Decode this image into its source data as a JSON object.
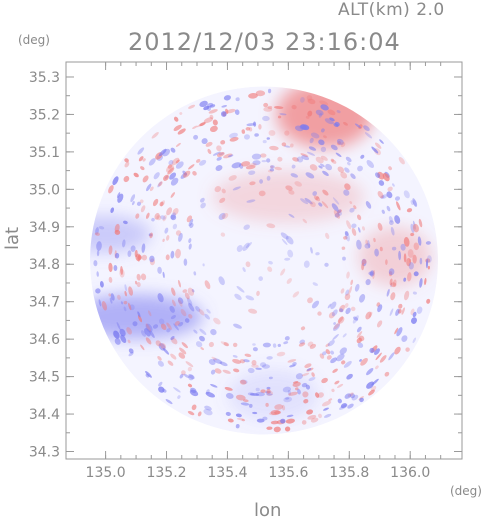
{
  "header": {
    "alt_label": "ALT(km) 2.0",
    "timestamp": "2012/12/03 23:16:04"
  },
  "axes": {
    "y_unit": "(deg)",
    "x_unit": "(deg)",
    "y_label": "lat",
    "x_label": "lon"
  },
  "colors": {
    "axis": "#9a9a9a",
    "positive": "#f07a7a",
    "negative": "#7a7af0",
    "neutral": "#f4f4ff"
  },
  "chart_data": {
    "type": "heatmap",
    "title": "2012/12/03 23:16:04",
    "xlabel": "lon",
    "ylabel": "lat",
    "xlim": [
      134.87,
      136.17
    ],
    "ylim": [
      34.28,
      35.34
    ],
    "x_ticks": [
      135.0,
      135.2,
      135.4,
      135.6,
      135.8,
      136.0
    ],
    "x_tick_labels": [
      "135.0",
      "135.2",
      "135.4",
      "135.6",
      "135.8",
      "136.0"
    ],
    "y_ticks": [
      34.3,
      34.4,
      34.5,
      34.6,
      34.7,
      34.8,
      34.9,
      35.0,
      35.1,
      35.2,
      35.3
    ],
    "y_tick_labels": [
      "34.3",
      "34.4",
      "34.5",
      "34.6",
      "34.7",
      "34.8",
      "34.9",
      "35.0",
      "35.1",
      "35.2",
      "35.3"
    ],
    "radar_center": [
      135.52,
      34.81
    ],
    "radar_radius_deg": 0.56,
    "field_regions": [
      {
        "lon": 135.72,
        "lat": 35.2,
        "rlon": 0.16,
        "rlat": 0.09,
        "sign": 1,
        "strength": 0.7
      },
      {
        "lon": 135.1,
        "lat": 34.66,
        "rlon": 0.22,
        "rlat": 0.06,
        "sign": -1,
        "strength": 0.55
      },
      {
        "lon": 135.0,
        "lat": 34.88,
        "rlon": 0.15,
        "rlat": 0.05,
        "sign": -1,
        "strength": 0.35
      },
      {
        "lon": 135.6,
        "lat": 34.98,
        "rlon": 0.25,
        "rlat": 0.07,
        "sign": 1,
        "strength": 0.25
      },
      {
        "lon": 135.95,
        "lat": 34.82,
        "rlon": 0.12,
        "rlat": 0.08,
        "sign": 1,
        "strength": 0.3
      },
      {
        "lon": 135.55,
        "lat": 34.45,
        "rlon": 0.15,
        "rlat": 0.07,
        "sign": -1,
        "strength": 0.15
      }
    ]
  }
}
